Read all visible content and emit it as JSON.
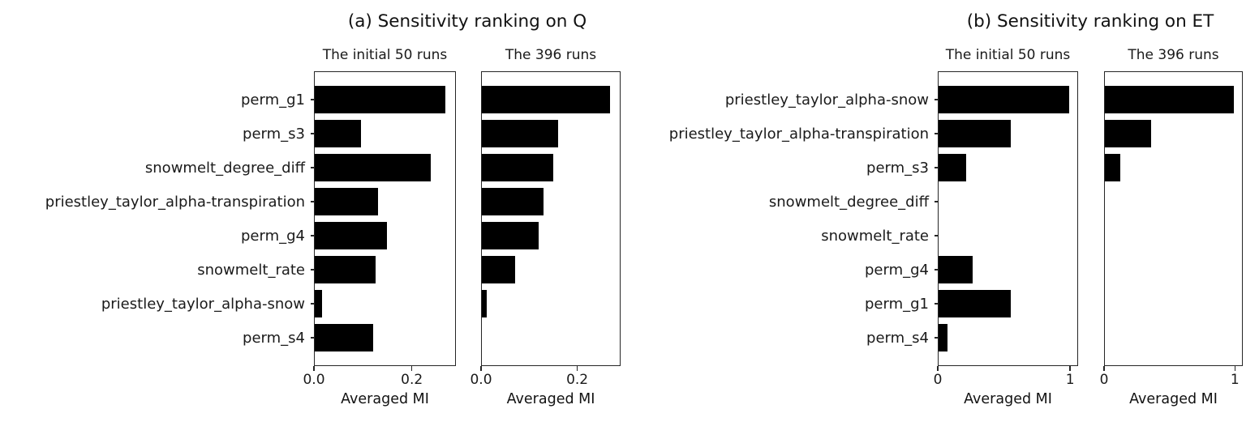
{
  "figure_title": "Sensitivity ranking bar charts",
  "chart_data": [
    {
      "type": "bar",
      "orientation": "horizontal",
      "title": "(a) Sensitivity ranking on Q",
      "categories": [
        "perm_g1",
        "perm_s3",
        "snowmelt_degree_diff",
        "priestley_taylor_alpha-transpiration",
        "perm_g4",
        "snowmelt_rate",
        "priestley_taylor_alpha-snow",
        "perm_s4"
      ],
      "series": [
        {
          "name": "The initial 50 runs",
          "values": [
            0.27,
            0.095,
            0.24,
            0.13,
            0.15,
            0.125,
            0.015,
            0.12
          ]
        },
        {
          "name": "The 396 runs",
          "values": [
            0.27,
            0.16,
            0.15,
            0.13,
            0.12,
            0.07,
            0.01,
            0.0
          ]
        }
      ],
      "xlabel": "Averaged MI",
      "xlim": [
        0,
        0.29
      ],
      "xticks": [
        {
          "value": 0,
          "label": "0.0"
        },
        {
          "value": 0.2,
          "label": "0.2"
        }
      ],
      "grid": false,
      "legend": "none",
      "bar_color": "#000000"
    },
    {
      "type": "bar",
      "orientation": "horizontal",
      "title": "(b) Sensitivity ranking on ET",
      "categories": [
        "priestley_taylor_alpha-snow",
        "priestley_taylor_alpha-transpiration",
        "perm_s3",
        "snowmelt_degree_diff",
        "snowmelt_rate",
        "perm_g4",
        "perm_g1",
        "perm_s4"
      ],
      "series": [
        {
          "name": "The initial 50 runs",
          "values": [
            1.0,
            0.55,
            0.21,
            0.0,
            0.0,
            0.26,
            0.55,
            0.07
          ]
        },
        {
          "name": "The 396 runs",
          "values": [
            1.0,
            0.36,
            0.12,
            0.0,
            0.0,
            0.0,
            0.0,
            0.0
          ]
        }
      ],
      "xlabel": "Averaged MI",
      "xlim": [
        0,
        1.06
      ],
      "xticks": [
        {
          "value": 0,
          "label": "0"
        },
        {
          "value": 1,
          "label": "1"
        }
      ],
      "grid": false,
      "legend": "none",
      "bar_color": "#000000"
    }
  ],
  "colors": {
    "bar": "#000000",
    "spine": "#262626",
    "text": "#111111",
    "background": "#ffffff"
  }
}
